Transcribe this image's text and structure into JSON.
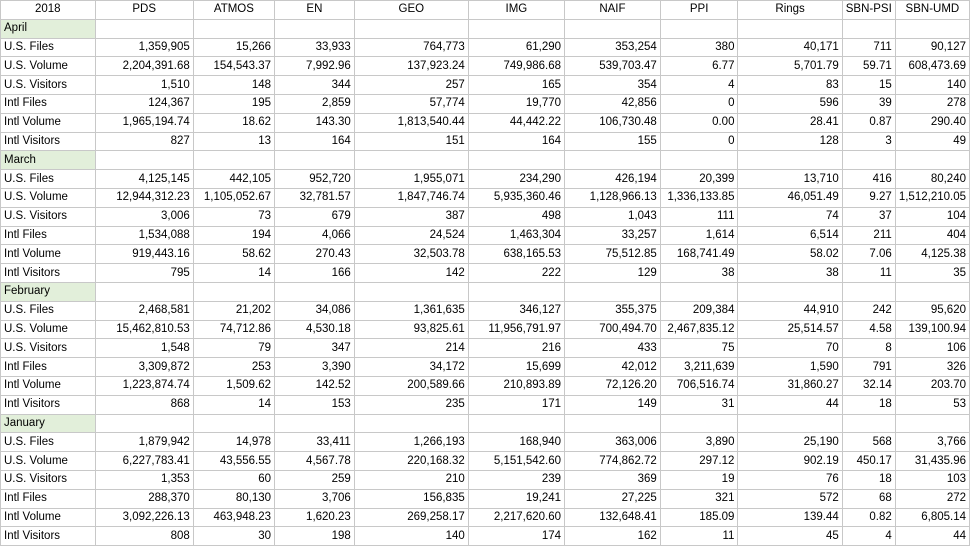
{
  "header": [
    "2018",
    "PDS",
    "ATMOS",
    "EN",
    "GEO",
    "IMG",
    "NAIF",
    "PPI",
    "Rings",
    "SBN-PSI",
    "SBN-UMD"
  ],
  "months": [
    {
      "name": "April",
      "rows": [
        [
          "U.S. Files",
          "1,359,905",
          "15,266",
          "33,933",
          "764,773",
          "61,290",
          "353,254",
          "380",
          "40,171",
          "711",
          "90,127"
        ],
        [
          "U.S. Volume",
          "2,204,391.68",
          "154,543.37",
          "7,992.96",
          "137,923.24",
          "749,986.68",
          "539,703.47",
          "6.77",
          "5,701.79",
          "59.71",
          "608,473.69"
        ],
        [
          "U.S. Visitors",
          "1,510",
          "148",
          "344",
          "257",
          "165",
          "354",
          "4",
          "83",
          "15",
          "140"
        ],
        [
          "Intl Files",
          "124,367",
          "195",
          "2,859",
          "57,774",
          "19,770",
          "42,856",
          "0",
          "596",
          "39",
          "278"
        ],
        [
          "Intl Volume",
          "1,965,194.74",
          "18.62",
          "143.30",
          "1,813,540.44",
          "44,442.22",
          "106,730.48",
          "0.00",
          "28.41",
          "0.87",
          "290.40"
        ],
        [
          "Intl Visitors",
          "827",
          "13",
          "164",
          "151",
          "164",
          "155",
          "0",
          "128",
          "3",
          "49"
        ]
      ]
    },
    {
      "name": "March",
      "rows": [
        [
          "U.S. Files",
          "4,125,145",
          "442,105",
          "952,720",
          "1,955,071",
          "234,290",
          "426,194",
          "20,399",
          "13,710",
          "416",
          "80,240"
        ],
        [
          "U.S. Volume",
          "12,944,312.23",
          "1,105,052.67",
          "32,781.57",
          "1,847,746.74",
          "5,935,360.46",
          "1,128,966.13",
          "1,336,133.85",
          "46,051.49",
          "9.27",
          "1,512,210.05"
        ],
        [
          "U.S. Visitors",
          "3,006",
          "73",
          "679",
          "387",
          "498",
          "1,043",
          "111",
          "74",
          "37",
          "104"
        ],
        [
          "Intl Files",
          "1,534,088",
          "194",
          "4,066",
          "24,524",
          "1,463,304",
          "33,257",
          "1,614",
          "6,514",
          "211",
          "404"
        ],
        [
          "Intl Volume",
          "919,443.16",
          "58.62",
          "270.43",
          "32,503.78",
          "638,165.53",
          "75,512.85",
          "168,741.49",
          "58.02",
          "7.06",
          "4,125.38"
        ],
        [
          "Intl Visitors",
          "795",
          "14",
          "166",
          "142",
          "222",
          "129",
          "38",
          "38",
          "11",
          "35"
        ]
      ]
    },
    {
      "name": "February",
      "rows": [
        [
          "U.S. Files",
          "2,468,581",
          "21,202",
          "34,086",
          "1,361,635",
          "346,127",
          "355,375",
          "209,384",
          "44,910",
          "242",
          "95,620"
        ],
        [
          "U.S. Volume",
          "15,462,810.53",
          "74,712.86",
          "4,530.18",
          "93,825.61",
          "11,956,791.97",
          "700,494.70",
          "2,467,835.12",
          "25,514.57",
          "4.58",
          "139,100.94"
        ],
        [
          "U.S. Visitors",
          "1,548",
          "79",
          "347",
          "214",
          "216",
          "433",
          "75",
          "70",
          "8",
          "106"
        ],
        [
          "Intl Files",
          "3,309,872",
          "253",
          "3,390",
          "34,172",
          "15,699",
          "42,012",
          "3,211,639",
          "1,590",
          "791",
          "326"
        ],
        [
          "Intl Volume",
          "1,223,874.74",
          "1,509.62",
          "142.52",
          "200,589.66",
          "210,893.89",
          "72,126.20",
          "706,516.74",
          "31,860.27",
          "32.14",
          "203.70"
        ],
        [
          "Intl Visitors",
          "868",
          "14",
          "153",
          "235",
          "171",
          "149",
          "31",
          "44",
          "18",
          "53"
        ]
      ]
    },
    {
      "name": "January",
      "rows": [
        [
          "U.S. Files",
          "1,879,942",
          "14,978",
          "33,411",
          "1,266,193",
          "168,940",
          "363,006",
          "3,890",
          "25,190",
          "568",
          "3,766"
        ],
        [
          "U.S. Volume",
          "6,227,783.41",
          "43,556.55",
          "4,567.78",
          "220,168.32",
          "5,151,542.60",
          "774,862.72",
          "297.12",
          "902.19",
          "450.17",
          "31,435.96"
        ],
        [
          "U.S. Visitors",
          "1,353",
          "60",
          "259",
          "210",
          "239",
          "369",
          "19",
          "76",
          "18",
          "103"
        ],
        [
          "Intl Files",
          "288,370",
          "80,130",
          "3,706",
          "156,835",
          "19,241",
          "27,225",
          "321",
          "572",
          "68",
          "272"
        ],
        [
          "Intl Volume",
          "3,092,226.13",
          "463,948.23",
          "1,620.23",
          "269,258.17",
          "2,217,620.60",
          "132,648.41",
          "185.09",
          "139.44",
          "0.82",
          "6,805.14"
        ],
        [
          "Intl Visitors",
          "808",
          "30",
          "198",
          "140",
          "174",
          "162",
          "11",
          "45",
          "4",
          "44"
        ]
      ]
    }
  ]
}
